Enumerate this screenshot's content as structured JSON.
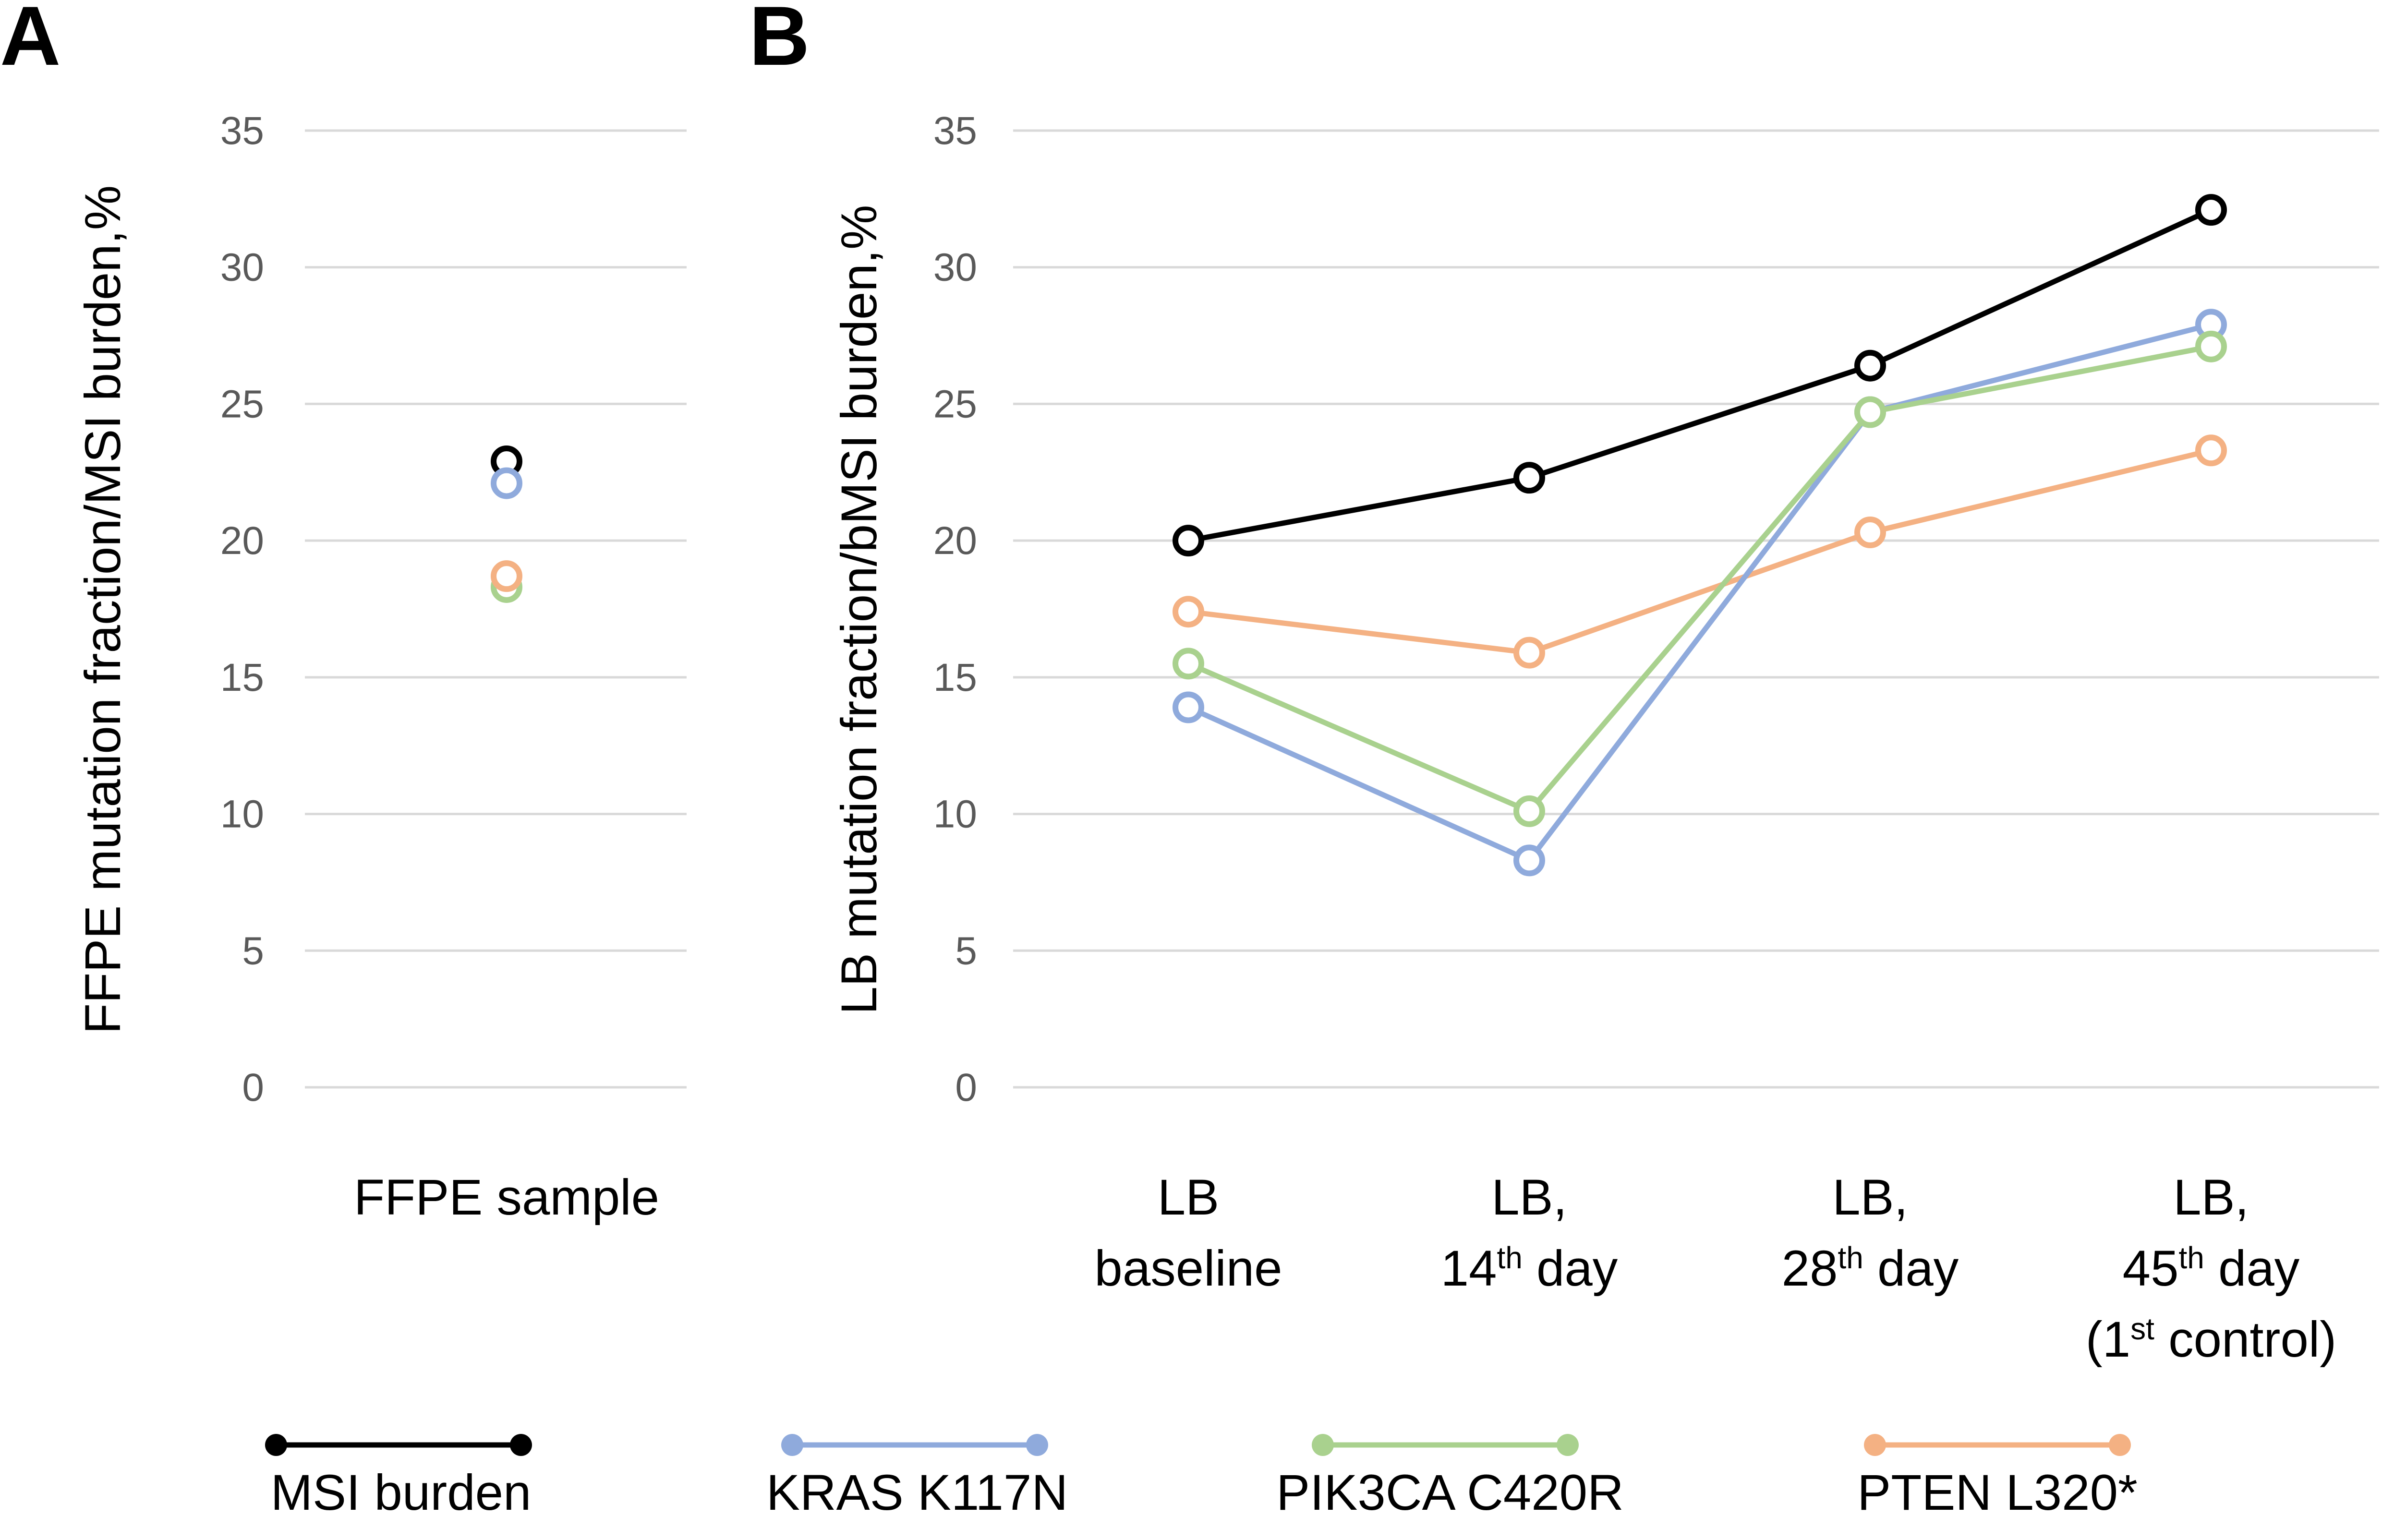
{
  "figure": {
    "panel_a_letter": "A",
    "panel_b_letter": "B"
  },
  "colors": {
    "msi": "#000000",
    "kras": "#8FAADC",
    "pik3ca": "#A9D18E",
    "pten": "#F4B183",
    "grid": "#D9D9D9",
    "tick_text": "#595959"
  },
  "legend": [
    {
      "key": "msi",
      "label": "MSI burden"
    },
    {
      "key": "kras",
      "label": "KRAS K117N"
    },
    {
      "key": "pik3ca",
      "label": "PIK3CA C420R"
    },
    {
      "key": "pten",
      "label": "PTEN L320*"
    }
  ],
  "chart_data": [
    {
      "panel": "A",
      "type": "scatter",
      "title": "",
      "xlabel": "",
      "ylabel": "FFPE mutation fraction/MSI burden,%",
      "ylim": [
        0,
        35
      ],
      "yticks": [
        0,
        5,
        10,
        15,
        20,
        25,
        30,
        35
      ],
      "grid": true,
      "categories": [
        "FFPE sample"
      ],
      "series": [
        {
          "key": "msi",
          "name": "MSI burden",
          "values": [
            22.9
          ]
        },
        {
          "key": "kras",
          "name": "KRAS K117N",
          "values": [
            22.1
          ]
        },
        {
          "key": "pik3ca",
          "name": "PIK3CA C420R",
          "values": [
            18.3
          ]
        },
        {
          "key": "pten",
          "name": "PTEN L320*",
          "values": [
            18.7
          ]
        }
      ]
    },
    {
      "panel": "B",
      "type": "line",
      "title": "",
      "xlabel": "",
      "ylabel": "LB mutation fraction/bMSI burden,%",
      "ylim": [
        0,
        35
      ],
      "yticks": [
        0,
        5,
        10,
        15,
        20,
        25,
        30,
        35
      ],
      "grid": true,
      "categories": [
        {
          "lines": [
            [
              {
                "t": "LB"
              }
            ],
            [
              {
                "t": "baseline"
              }
            ]
          ]
        },
        {
          "lines": [
            [
              {
                "t": "LB,"
              }
            ],
            [
              {
                "t": "14"
              },
              {
                "t": "th",
                "sup": true
              },
              {
                "t": " day"
              }
            ]
          ]
        },
        {
          "lines": [
            [
              {
                "t": "LB,"
              }
            ],
            [
              {
                "t": "28"
              },
              {
                "t": "th",
                "sup": true
              },
              {
                "t": " day"
              }
            ]
          ]
        },
        {
          "lines": [
            [
              {
                "t": "LB,"
              }
            ],
            [
              {
                "t": "45"
              },
              {
                "t": "th",
                "sup": true
              },
              {
                "t": " day"
              }
            ],
            [
              {
                "t": "(1"
              },
              {
                "t": "st",
                "sup": true
              },
              {
                "t": " control)"
              }
            ]
          ]
        }
      ],
      "series": [
        {
          "key": "pten",
          "name": "PTEN L320*",
          "values": [
            17.4,
            15.9,
            20.3,
            23.3
          ]
        },
        {
          "key": "kras",
          "name": "KRAS K117N",
          "values": [
            13.9,
            8.3,
            24.7,
            27.9
          ]
        },
        {
          "key": "pik3ca",
          "name": "PIK3CA C420R",
          "values": [
            15.5,
            10.1,
            24.7,
            27.1
          ]
        },
        {
          "key": "msi",
          "name": "MSI burden",
          "values": [
            20.0,
            22.3,
            26.4,
            32.1
          ]
        }
      ]
    }
  ]
}
